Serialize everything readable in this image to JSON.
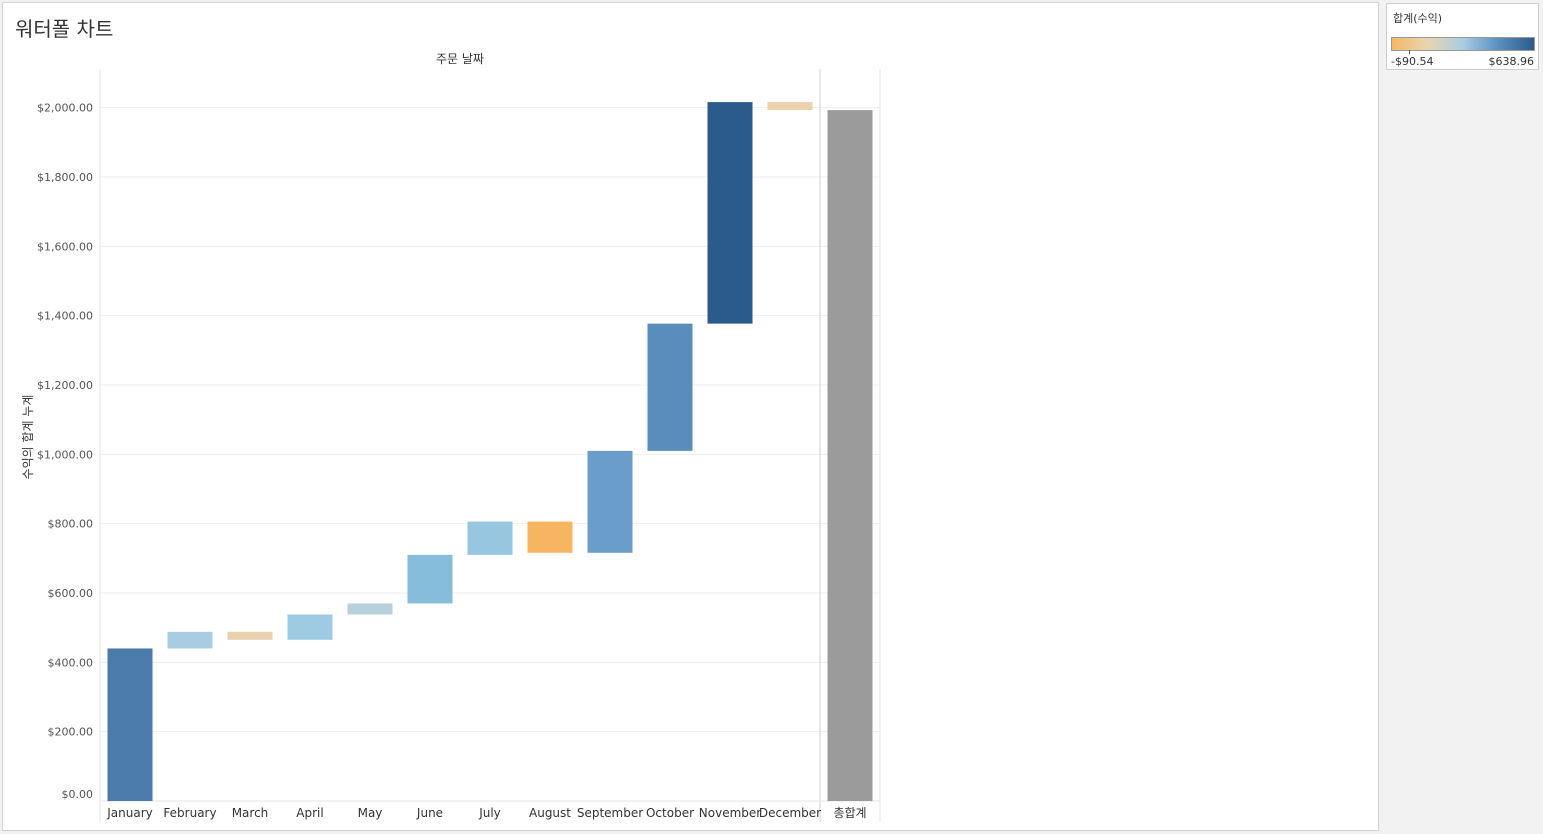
{
  "title": "워터폴 차트",
  "legend": {
    "title": "합계(수익)",
    "min_label": "-$90.54",
    "max_label": "$638.96",
    "gradient": [
      "#f5b865",
      "#e8d5b0",
      "#a9cde4",
      "#5b8fc0",
      "#2b5b8e"
    ]
  },
  "chart_data": {
    "type": "bar",
    "subtype": "waterfall",
    "title": "워터폴 차트",
    "column_header": "주문 날짜",
    "ylabel": "수익의 합계 누계",
    "xlabel": "",
    "ylim": [
      0,
      2100
    ],
    "y_ticks": [
      "$0.00",
      "$200.00",
      "$400.00",
      "$600.00",
      "$800.00",
      "$1,000.00",
      "$1,200.00",
      "$1,400.00",
      "$1,600.00",
      "$1,800.00",
      "$2,000.00"
    ],
    "y_tick_values": [
      0,
      200,
      400,
      600,
      800,
      1000,
      1200,
      1400,
      1600,
      1800,
      2000
    ],
    "grid": true,
    "categories": [
      "January",
      "February",
      "March",
      "April",
      "May",
      "June",
      "July",
      "August",
      "September",
      "October",
      "November",
      "December"
    ],
    "bars": [
      {
        "start": 0,
        "end": 440,
        "color": "#4a7bab"
      },
      {
        "start": 440,
        "end": 488,
        "color": "#a8cce2"
      },
      {
        "start": 488,
        "end": 465,
        "color": "#e8d1ae"
      },
      {
        "start": 465,
        "end": 538,
        "color": "#9ecae3"
      },
      {
        "start": 538,
        "end": 570,
        "color": "#b7d1dc"
      },
      {
        "start": 570,
        "end": 710,
        "color": "#86bddb"
      },
      {
        "start": 710,
        "end": 806,
        "color": "#96c6e0"
      },
      {
        "start": 806,
        "end": 716,
        "color": "#f7b562"
      },
      {
        "start": 716,
        "end": 1010,
        "color": "#6a9dca"
      },
      {
        "start": 1010,
        "end": 1377,
        "color": "#5a8dbc"
      },
      {
        "start": 1377,
        "end": 2016,
        "color": "#2b5b8c"
      },
      {
        "start": 2016,
        "end": 1993,
        "color": "#ebd2ad"
      }
    ],
    "total": {
      "label": "총합계",
      "value": 1993,
      "color": "#9b9b9b"
    },
    "legend_position": "top-right"
  }
}
